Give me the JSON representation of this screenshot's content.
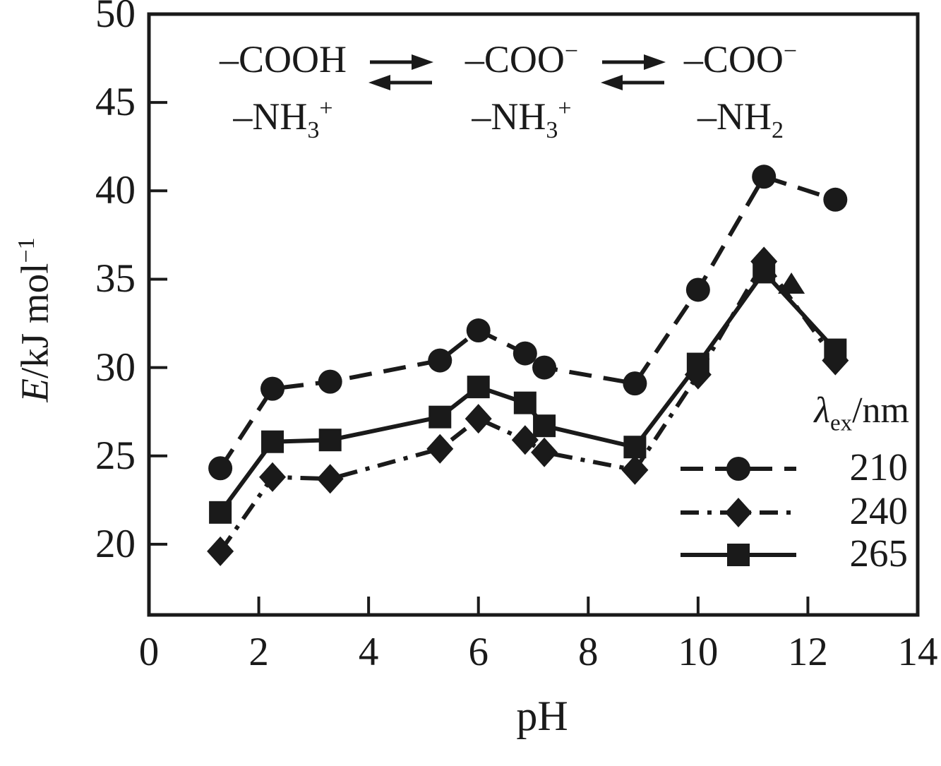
{
  "figure": {
    "bg_color": "#ffffff",
    "ink_color": "#1a1a1a"
  },
  "x_axis": {
    "label": "pH"
  },
  "y_axis": {
    "label_italic": "E",
    "label_rest": "/kJ mol",
    "label_sup": "−1"
  },
  "reaction_scheme": {
    "groups": [
      {
        "l1": "–COOH",
        "l1sup": "",
        "l2": "–NH",
        "l2sub": "3",
        "l2sup": "+"
      },
      {
        "l1": "–COO",
        "l1sup": "−",
        "l2": "–NH",
        "l2sub": "3",
        "l2sup": "+"
      },
      {
        "l1": "–COO",
        "l1sup": "−",
        "l2": "–NH",
        "l2sub": "2",
        "l2sup": ""
      }
    ]
  },
  "legend": {
    "title_lambda": "λ",
    "title_sub": "ex",
    "title_rest": "/nm",
    "entries": [
      "210",
      "240",
      "265"
    ]
  },
  "chart_data": {
    "type": "line",
    "title": "",
    "xlabel": "pH",
    "ylabel": "E/kJ mol−1",
    "xlim": [
      0,
      14
    ],
    "ylim": [
      16,
      50
    ],
    "x_ticks": [
      0,
      2,
      4,
      6,
      8,
      10,
      12,
      14
    ],
    "y_ticks": [
      20,
      25,
      30,
      35,
      40,
      45,
      50
    ],
    "grid": false,
    "legend_position": "lower-right",
    "legend_title": "λex/nm",
    "annotations": [
      "–COOH/–NH3+  ⇌  –COO−/–NH3+  ⇌  –COO−/–NH2"
    ],
    "series": [
      {
        "name": "210",
        "line_style": "dashed",
        "marker": "circle",
        "x": [
          1.3,
          2.25,
          3.3,
          5.3,
          6.0,
          6.85,
          7.2,
          8.85,
          10.0,
          11.2,
          12.5
        ],
        "y": [
          24.3,
          28.8,
          29.2,
          30.4,
          32.1,
          30.8,
          30.0,
          29.1,
          34.4,
          40.8,
          39.5
        ]
      },
      {
        "name": "240",
        "line_style": "dashdot",
        "marker": "diamond",
        "x": [
          1.3,
          2.25,
          3.3,
          5.3,
          6.0,
          6.85,
          7.2,
          8.85,
          10.0,
          11.2,
          12.5
        ],
        "y": [
          19.6,
          23.8,
          23.7,
          25.4,
          27.1,
          25.9,
          25.2,
          24.2,
          29.6,
          36.0,
          30.4
        ]
      },
      {
        "name": "265",
        "line_style": "solid",
        "marker": "square",
        "x": [
          1.3,
          2.25,
          3.3,
          5.3,
          6.0,
          6.85,
          7.2,
          8.85,
          10.0,
          11.2,
          12.5
        ],
        "y": [
          21.8,
          25.8,
          25.9,
          27.2,
          28.9,
          28.0,
          26.7,
          25.5,
          30.2,
          35.4,
          31.0
        ]
      }
    ],
    "extra_markers": [
      {
        "marker": "triangle-up",
        "x": 11.7,
        "y": 34.7
      }
    ]
  }
}
